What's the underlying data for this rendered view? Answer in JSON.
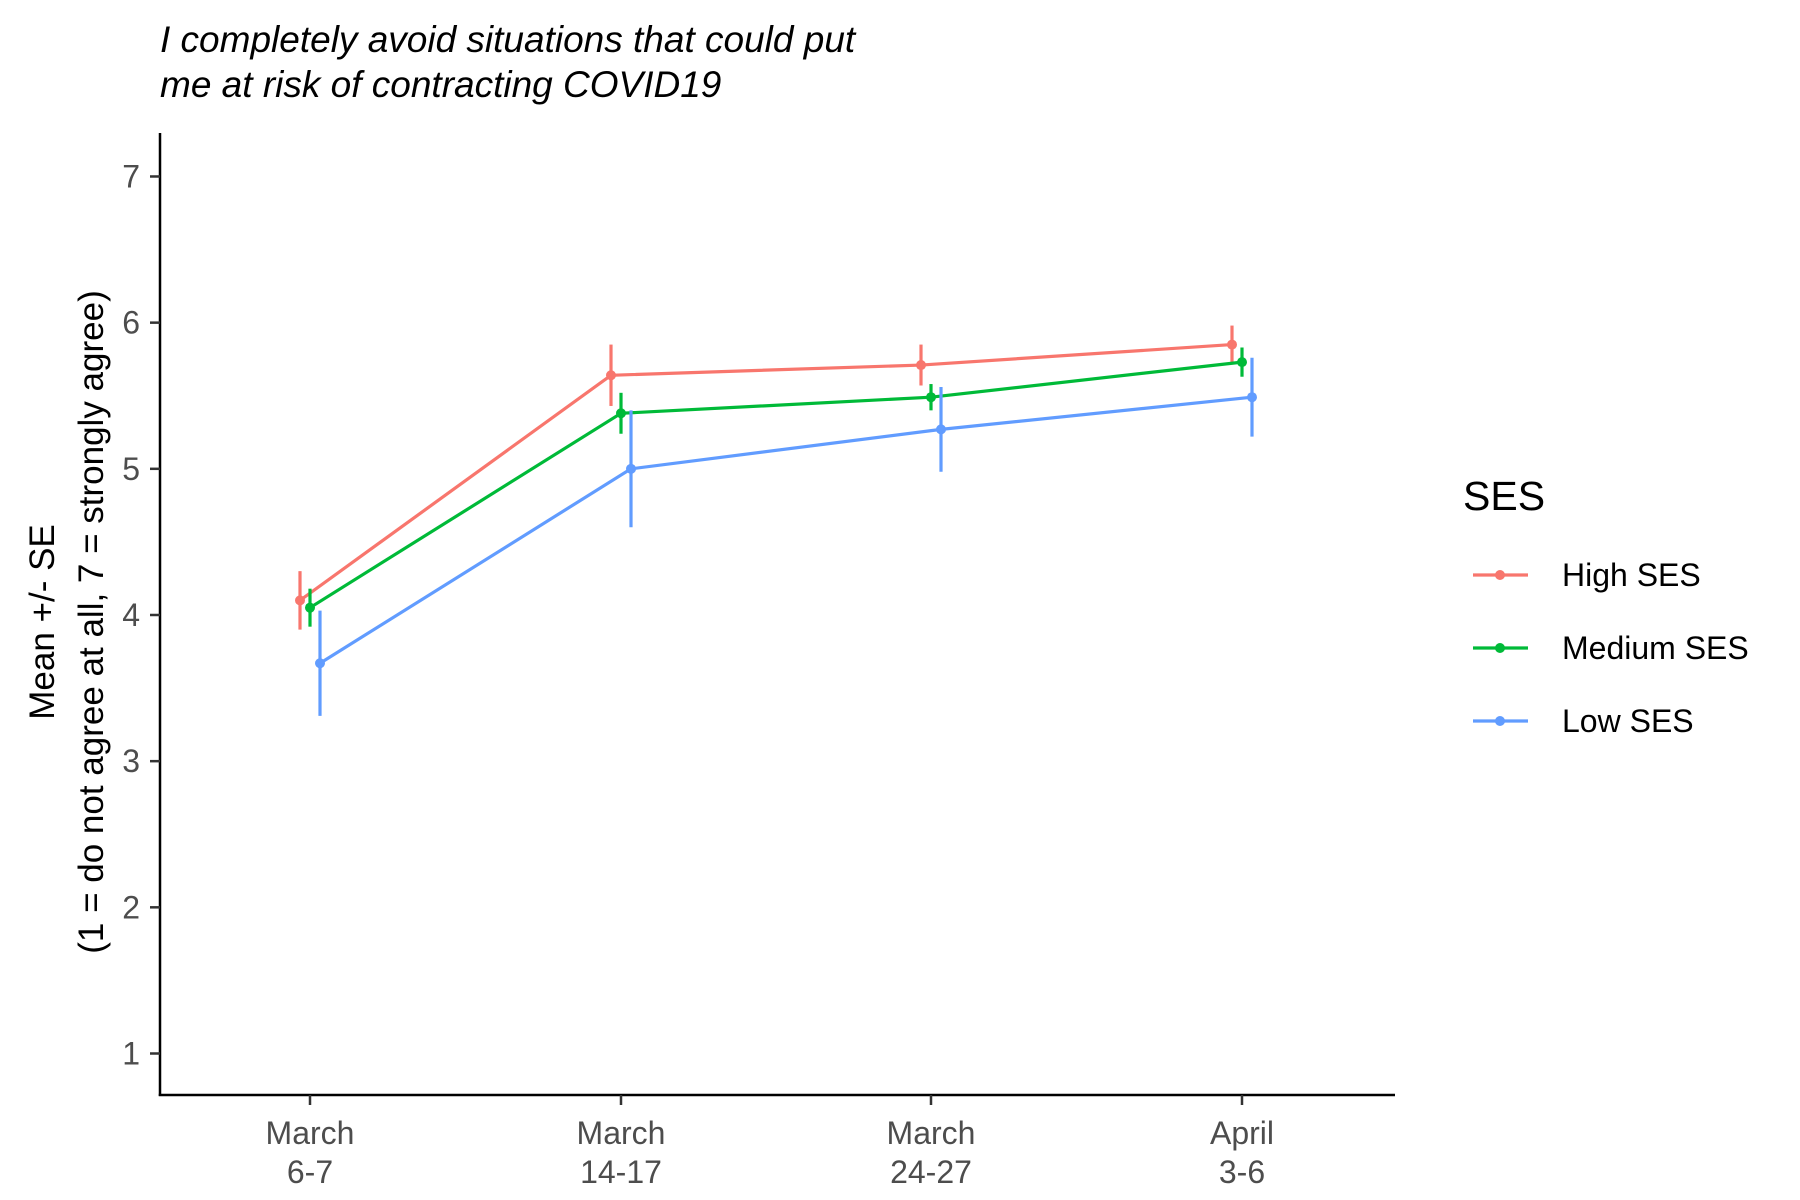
{
  "chart_data": {
    "type": "line",
    "title_lines": [
      "I completely avoid situations that could put",
      "me at risk of contracting COVID19"
    ],
    "ylabel_lines": [
      "Mean +/- SE",
      "(1 = do not agree at all, 7 = strongly agree)"
    ],
    "xlabel": "",
    "categories": [
      [
        "March",
        "6-7"
      ],
      [
        "March",
        "14-17"
      ],
      [
        "March",
        "24-27"
      ],
      [
        "April",
        "3-6"
      ]
    ],
    "yticks": [
      1,
      2,
      3,
      4,
      5,
      6,
      7
    ],
    "ylim": [
      0.7,
      7.3
    ],
    "grid": false,
    "legend": {
      "title": "SES",
      "position": "right"
    },
    "series": [
      {
        "name": "High SES",
        "color": "#F8766D",
        "values": [
          4.1,
          5.64,
          5.71,
          5.85
        ],
        "se": [
          0.2,
          0.21,
          0.14,
          0.13
        ]
      },
      {
        "name": "Medium SES",
        "color": "#00BA38",
        "values": [
          4.05,
          5.38,
          5.49,
          5.73
        ],
        "se": [
          0.13,
          0.14,
          0.09,
          0.1
        ]
      },
      {
        "name": "Low SES",
        "color": "#619CFF",
        "values": [
          3.67,
          5.0,
          5.27,
          5.49
        ],
        "se": [
          0.36,
          0.4,
          0.29,
          0.27
        ]
      }
    ]
  }
}
